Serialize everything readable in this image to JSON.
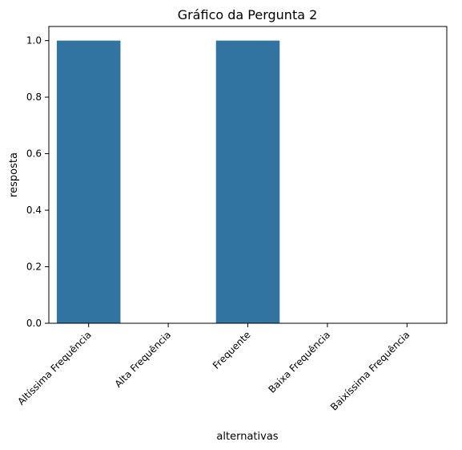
{
  "chart_data": {
    "type": "bar",
    "title": "Gráfico da Pergunta 2",
    "xlabel": "alternativas",
    "ylabel": "resposta",
    "categories": [
      "Altíssima Frequência",
      "Alta Frequência",
      "Frequente",
      "Baixa Frequência",
      "Baixíssima Frequência"
    ],
    "values": [
      1.0,
      0.0,
      1.0,
      0.0,
      0.0
    ],
    "ylim": [
      0,
      1.05
    ],
    "yticks": [
      "0.0",
      "0.2",
      "0.4",
      "0.6",
      "0.8",
      "1.0"
    ],
    "bar_color": "#3274a1",
    "grid": false,
    "legend": "none"
  }
}
